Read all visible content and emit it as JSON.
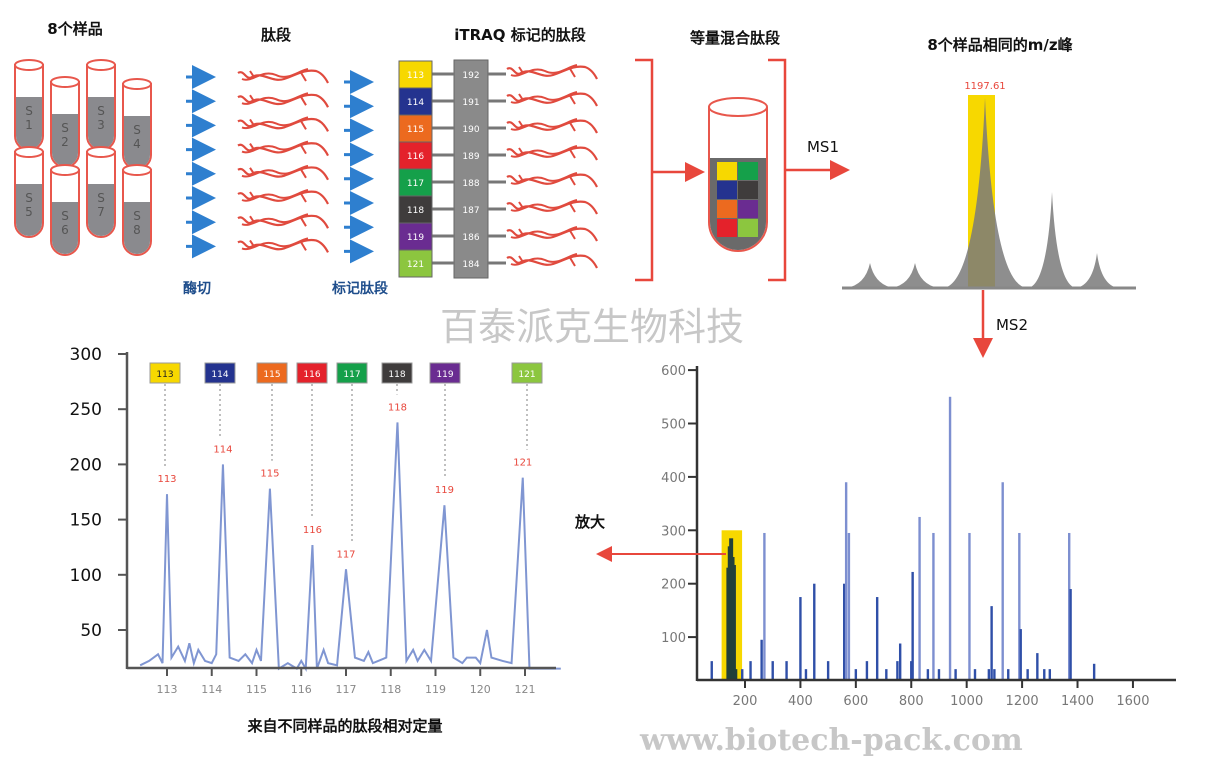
{
  "titles": {
    "samples": "8个样品",
    "peptides": "肽段",
    "itraq_labeled": "iTRAQ 标记的肽段",
    "mixed": "等量混合肽段",
    "same_mz": "8个样品相同的m/z峰",
    "caption": "来自不同样品的肽段相对定量"
  },
  "steps": {
    "digest": "酶切",
    "label": "标记肽段",
    "ms1": "MS1",
    "ms2": "MS2",
    "zoom": "放大"
  },
  "samples": [
    "S 1",
    "S 2",
    "S 3",
    "S 4",
    "S 5",
    "S 6",
    "S 7",
    "S 8"
  ],
  "reporters": [
    {
      "tag": "113",
      "balance": "192",
      "color": "#f7d800"
    },
    {
      "tag": "114",
      "balance": "191",
      "color": "#24338f"
    },
    {
      "tag": "115",
      "balance": "190",
      "color": "#ec6a1f"
    },
    {
      "tag": "116",
      "balance": "189",
      "color": "#e4222b"
    },
    {
      "tag": "117",
      "balance": "188",
      "color": "#15a04a"
    },
    {
      "tag": "118",
      "balance": "187",
      "color": "#3f3c3c"
    },
    {
      "tag": "119",
      "balance": "186",
      "color": "#6a2c91"
    },
    {
      "tag": "121",
      "balance": "184",
      "color": "#8cc63f"
    }
  ],
  "ms1_peak_label": "1197.61",
  "watermark": {
    "name": "百泰派克生物科技",
    "url": "www.biotech-pack.com"
  },
  "colors": {
    "accent_red": "#e8473c",
    "arrow_blue": "#2e7fcf",
    "highlight": "#f7d800",
    "spectrum_blue": "#2f4fa8",
    "line_blue": "#8096d2"
  },
  "chart_data": [
    {
      "type": "line",
      "xlabel": "",
      "ylabel": "",
      "xlim": [
        112.3,
        121.9
      ],
      "ylim": [
        15,
        300
      ],
      "yticks": [
        50,
        100,
        150,
        200,
        250,
        300
      ],
      "xticks": [
        "113",
        "114",
        "115",
        "116",
        "117",
        "118",
        "119",
        "120",
        "121"
      ],
      "peak_labels": [
        {
          "label": "113",
          "x": 113.0,
          "y": 173
        },
        {
          "label": "114",
          "x": 114.25,
          "y": 200
        },
        {
          "label": "115",
          "x": 115.3,
          "y": 178
        },
        {
          "label": "116",
          "x": 116.25,
          "y": 127
        },
        {
          "label": "117",
          "x": 117.0,
          "y": 105
        },
        {
          "label": "118",
          "x": 118.15,
          "y": 238
        },
        {
          "label": "119",
          "x": 119.2,
          "y": 163
        },
        {
          "label": "121",
          "x": 120.95,
          "y": 188
        }
      ],
      "series": [
        {
          "points": [
            [
              112.4,
              18
            ],
            [
              112.6,
              22
            ],
            [
              112.8,
              28
            ],
            [
              112.9,
              20
            ],
            [
              113.0,
              173
            ],
            [
              113.1,
              25
            ],
            [
              113.25,
              35
            ],
            [
              113.4,
              22
            ],
            [
              113.5,
              38
            ],
            [
              113.6,
              20
            ],
            [
              113.7,
              32
            ],
            [
              113.85,
              22
            ],
            [
              114.0,
              20
            ],
            [
              114.1,
              28
            ],
            [
              114.25,
              200
            ],
            [
              114.4,
              25
            ],
            [
              114.6,
              22
            ],
            [
              114.75,
              28
            ],
            [
              114.9,
              20
            ],
            [
              115.0,
              32
            ],
            [
              115.1,
              22
            ],
            [
              115.3,
              178
            ],
            [
              115.5,
              15
            ],
            [
              115.7,
              20
            ],
            [
              115.9,
              15
            ],
            [
              116.0,
              22
            ],
            [
              116.1,
              15
            ],
            [
              116.25,
              127
            ],
            [
              116.35,
              15
            ],
            [
              116.5,
              32
            ],
            [
              116.6,
              20
            ],
            [
              116.8,
              18
            ],
            [
              117.0,
              105
            ],
            [
              117.2,
              25
            ],
            [
              117.4,
              22
            ],
            [
              117.5,
              30
            ],
            [
              117.6,
              20
            ],
            [
              117.9,
              25
            ],
            [
              118.15,
              238
            ],
            [
              118.35,
              22
            ],
            [
              118.5,
              32
            ],
            [
              118.6,
              22
            ],
            [
              118.75,
              32
            ],
            [
              118.9,
              22
            ],
            [
              119.2,
              163
            ],
            [
              119.4,
              25
            ],
            [
              119.6,
              20
            ],
            [
              119.7,
              25
            ],
            [
              119.9,
              25
            ],
            [
              120.0,
              20
            ],
            [
              120.15,
              50
            ],
            [
              120.25,
              25
            ],
            [
              120.5,
              22
            ],
            [
              120.7,
              20
            ],
            [
              120.95,
              188
            ],
            [
              121.1,
              15
            ],
            [
              121.8,
              15
            ]
          ]
        }
      ]
    },
    {
      "type": "bar",
      "xlabel": "",
      "ylabel": "",
      "xlim": [
        60,
        1600
      ],
      "ylim": [
        17,
        600
      ],
      "xticks": [
        200,
        400,
        600,
        800,
        1000,
        1200,
        1400,
        1600
      ],
      "yticks": [
        100,
        200,
        300,
        400,
        500,
        600
      ],
      "highlight_range": [
        130,
        175
      ],
      "reporter_cluster": [
        [
          140,
          230
        ],
        [
          145,
          270
        ],
        [
          150,
          285
        ],
        [
          155,
          250
        ],
        [
          160,
          235
        ],
        [
          165,
          40
        ]
      ],
      "peaks": [
        [
          80,
          55
        ],
        [
          190,
          40
        ],
        [
          220,
          55
        ],
        [
          260,
          95
        ],
        [
          270,
          295
        ],
        [
          300,
          55
        ],
        [
          350,
          55
        ],
        [
          400,
          175
        ],
        [
          420,
          40
        ],
        [
          450,
          200
        ],
        [
          500,
          55
        ],
        [
          558,
          200
        ],
        [
          565,
          390
        ],
        [
          575,
          295
        ],
        [
          600,
          40
        ],
        [
          640,
          55
        ],
        [
          677,
          175
        ],
        [
          710,
          40
        ],
        [
          750,
          55
        ],
        [
          760,
          88
        ],
        [
          800,
          55
        ],
        [
          805,
          222
        ],
        [
          830,
          325
        ],
        [
          860,
          40
        ],
        [
          880,
          295
        ],
        [
          900,
          40
        ],
        [
          940,
          550
        ],
        [
          960,
          40
        ],
        [
          1010,
          295
        ],
        [
          1030,
          40
        ],
        [
          1080,
          40
        ],
        [
          1090,
          158
        ],
        [
          1100,
          40
        ],
        [
          1130,
          390
        ],
        [
          1150,
          40
        ],
        [
          1190,
          295
        ],
        [
          1195,
          115
        ],
        [
          1220,
          40
        ],
        [
          1255,
          70
        ],
        [
          1280,
          40
        ],
        [
          1300,
          40
        ],
        [
          1370,
          295
        ],
        [
          1375,
          190
        ],
        [
          1460,
          50
        ]
      ]
    }
  ]
}
